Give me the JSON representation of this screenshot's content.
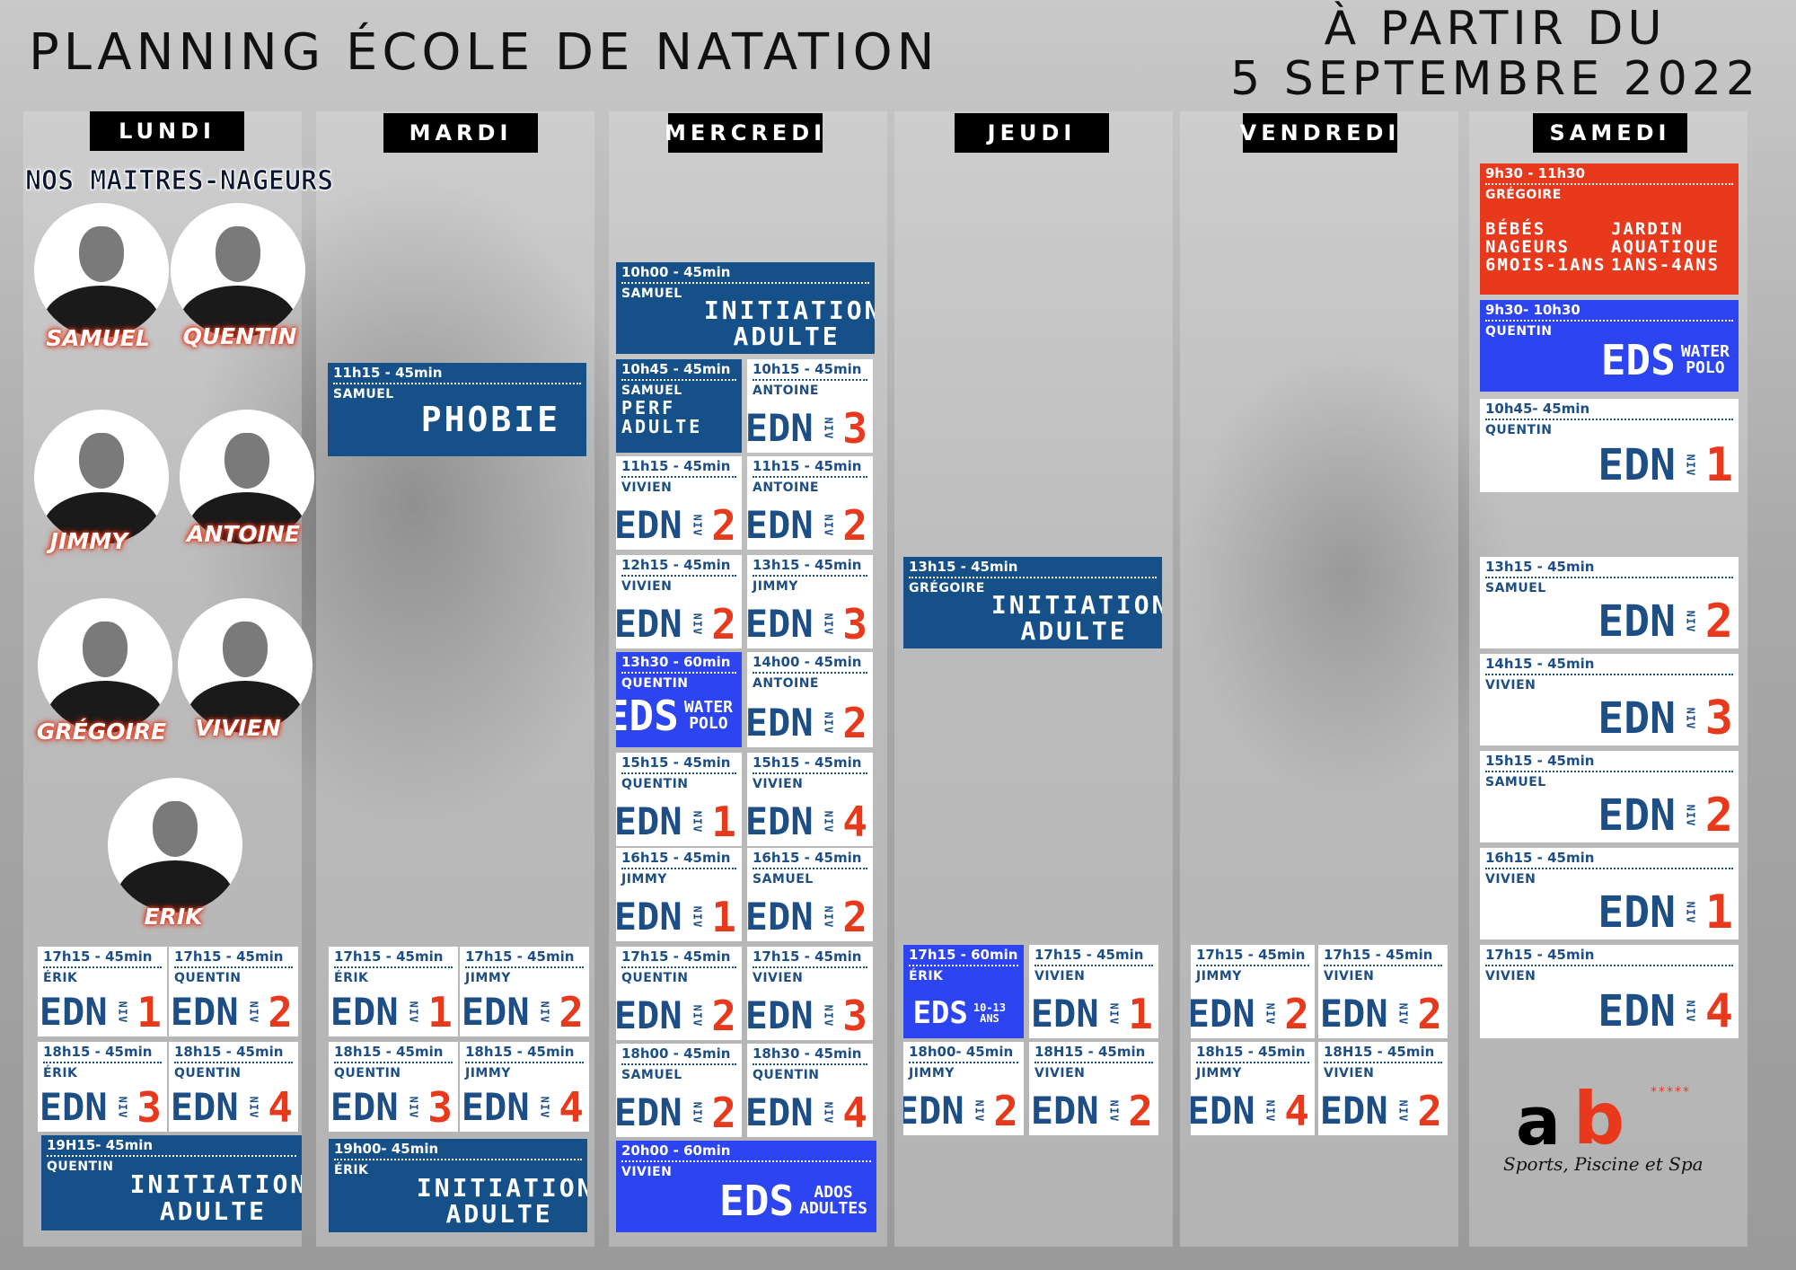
{
  "title": "PLANNING ÉCOLE DE NATATION",
  "date_line1": "À PARTIR DU",
  "date_line2": "5 SEPTEMBRE 2022",
  "days": [
    "LUNDI",
    "MARDI",
    "MERCREDI",
    "JEUDI",
    "VENDREDI",
    "SAMEDI"
  ],
  "maitres_title": "NOS MAITRES-NAGEURS",
  "coaches": [
    "SAMUEL",
    "QUENTIN",
    "JIMMY",
    "ANTOINE",
    "GRÉGOIRE",
    "VIVIEN",
    "ERIK"
  ],
  "nv": "NIV",
  "edn": "EDN",
  "eds": "EDS",
  "colors": {
    "dark_blue": "#165089",
    "bright_blue": "#2d45f0",
    "red": "#e8391c",
    "text_blue": "#1d4e86"
  },
  "cards": {
    "lun1": {
      "time": "17h15 - 45min",
      "coach": "ÉRIK",
      "level": "1"
    },
    "lun2": {
      "time": "17h15 - 45min",
      "coach": "QUENTIN",
      "level": "2"
    },
    "lun3": {
      "time": "18h15 - 45min",
      "coach": "ÉRIK",
      "level": "3"
    },
    "lun4": {
      "time": "18h15 - 45min",
      "coach": "QUENTIN",
      "level": "4"
    },
    "lun5": {
      "time": "19H15- 45min",
      "coach": "QUENTIN",
      "label1": "INITIATION",
      "label2": "ADULTE"
    },
    "mar1": {
      "time": "11h15 - 45min",
      "coach": "SAMUEL",
      "label1": "PHOBIE"
    },
    "mar2": {
      "time": "17h15 - 45min",
      "coach": "ÉRIK",
      "level": "1"
    },
    "mar3": {
      "time": "17h15 - 45min",
      "coach": "JIMMY",
      "level": "2"
    },
    "mar4": {
      "time": "18h15 - 45min",
      "coach": "QUENTIN",
      "level": "3"
    },
    "mar5": {
      "time": "18h15 - 45min",
      "coach": "JIMMY",
      "level": "4"
    },
    "mar6": {
      "time": "19h00- 45min",
      "coach": "ÉRIK",
      "label1": "INITIATION",
      "label2": "ADULTE"
    },
    "mer1": {
      "time": "10h00 - 45min",
      "coach": "SAMUEL",
      "label1": "INITIATION",
      "label2": "ADULTE"
    },
    "mer2": {
      "time": "10h45 - 45min",
      "coach": "SAMUEL",
      "label1": "PERF",
      "label2": "ADULTE"
    },
    "mer3": {
      "time": "10h15 - 45min",
      "coach": "ANTOINE",
      "level": "3"
    },
    "mer4": {
      "time": "11h15 - 45min",
      "coach": "VIVIEN",
      "level": "2"
    },
    "mer5": {
      "time": "11h15 - 45min",
      "coach": "ANTOINE",
      "level": "2"
    },
    "mer6": {
      "time": "12h15 - 45min",
      "coach": "VIVIEN",
      "level": "2"
    },
    "mer7": {
      "time": "13h15 - 45min",
      "coach": "JIMMY",
      "level": "3"
    },
    "mer8": {
      "time": "13h30 - 60min",
      "coach": "QUENTIN",
      "sub1": "WATER",
      "sub2": "POLO"
    },
    "mer9": {
      "time": "14h00 - 45min",
      "coach": "ANTOINE",
      "level": "2"
    },
    "mer10": {
      "time": "15h15 - 45min",
      "coach": "QUENTIN",
      "level": "1"
    },
    "mer11": {
      "time": "15h15 - 45min",
      "coach": "VIVIEN",
      "level": "4"
    },
    "mer12": {
      "time": "16h15 - 45min",
      "coach": "JIMMY",
      "level": "1"
    },
    "mer13": {
      "time": "16h15 - 45min",
      "coach": "SAMUEL",
      "level": "2"
    },
    "mer14": {
      "time": "17h15 - 45min",
      "coach": "QUENTIN",
      "level": "2"
    },
    "mer15": {
      "time": "17h15 - 45min",
      "coach": "VIVIEN",
      "level": "3"
    },
    "mer16": {
      "time": "18h00 - 45min",
      "coach": "SAMUEL",
      "level": "2"
    },
    "mer17": {
      "time": "18h30 - 45min",
      "coach": "QUENTIN",
      "level": "4"
    },
    "mer18": {
      "time": "20h00 - 60min",
      "coach": "VIVIEN",
      "sub1": "ADOS",
      "sub2": "ADULTES"
    },
    "jeu1": {
      "time": "13h15 - 45min",
      "coach": "GRÉGOIRE",
      "label1": "INITIATION",
      "label2": "ADULTE"
    },
    "jeu2": {
      "time": "17h15 - 60min",
      "coach": "ÉRIK",
      "sub1": "10-13",
      "sub2": "ANS"
    },
    "jeu3": {
      "time": "17h15 - 45min",
      "coach": "VIVIEN",
      "level": "1"
    },
    "jeu4": {
      "time": "18h00- 45min",
      "coach": "JIMMY",
      "level": "2"
    },
    "jeu5": {
      "time": "18H15 - 45min",
      "coach": "VIVIEN",
      "level": "2"
    },
    "ven1": {
      "time": "17h15 - 45min",
      "coach": "JIMMY",
      "level": "2"
    },
    "ven2": {
      "time": "17h15 - 45min",
      "coach": "VIVIEN",
      "level": "2"
    },
    "ven3": {
      "time": "18h15 - 45min",
      "coach": "JIMMY",
      "level": "4"
    },
    "ven4": {
      "time": "18H15 - 45min",
      "coach": "VIVIEN",
      "level": "2"
    },
    "sam1": {
      "time": "9h30 - 11h30",
      "coach": "GRÉGOIRE",
      "col1a": "BÉBÉS",
      "col1b": "NAGEURS",
      "col1c": "6MOIS-1ANS",
      "col2a": "JARDIN",
      "col2b": "AQUATIQUE",
      "col2c": "1ANS-4ANS"
    },
    "sam2": {
      "time": "9h30- 10h30",
      "coach": "QUENTIN",
      "sub1": "WATER",
      "sub2": "POLO"
    },
    "sam3": {
      "time": "10h45- 45min",
      "coach": "QUENTIN",
      "level": "1"
    },
    "sam4": {
      "time": "13h15 - 45min",
      "coach": "SAMUEL",
      "level": "2"
    },
    "sam5": {
      "time": "14h15 - 45min",
      "coach": "VIVIEN",
      "level": "3"
    },
    "sam6": {
      "time": "15h15 - 45min",
      "coach": "SAMUEL",
      "level": "2"
    },
    "sam7": {
      "time": "16h15 - 45min",
      "coach": "VIVIEN",
      "level": "1"
    },
    "sam8": {
      "time": "17h15 - 45min",
      "coach": "VIVIEN",
      "level": "4"
    }
  },
  "logo": {
    "a": "a",
    "b": "b",
    "stars": "*****",
    "tagline": "Sports, Piscine et Spa"
  }
}
